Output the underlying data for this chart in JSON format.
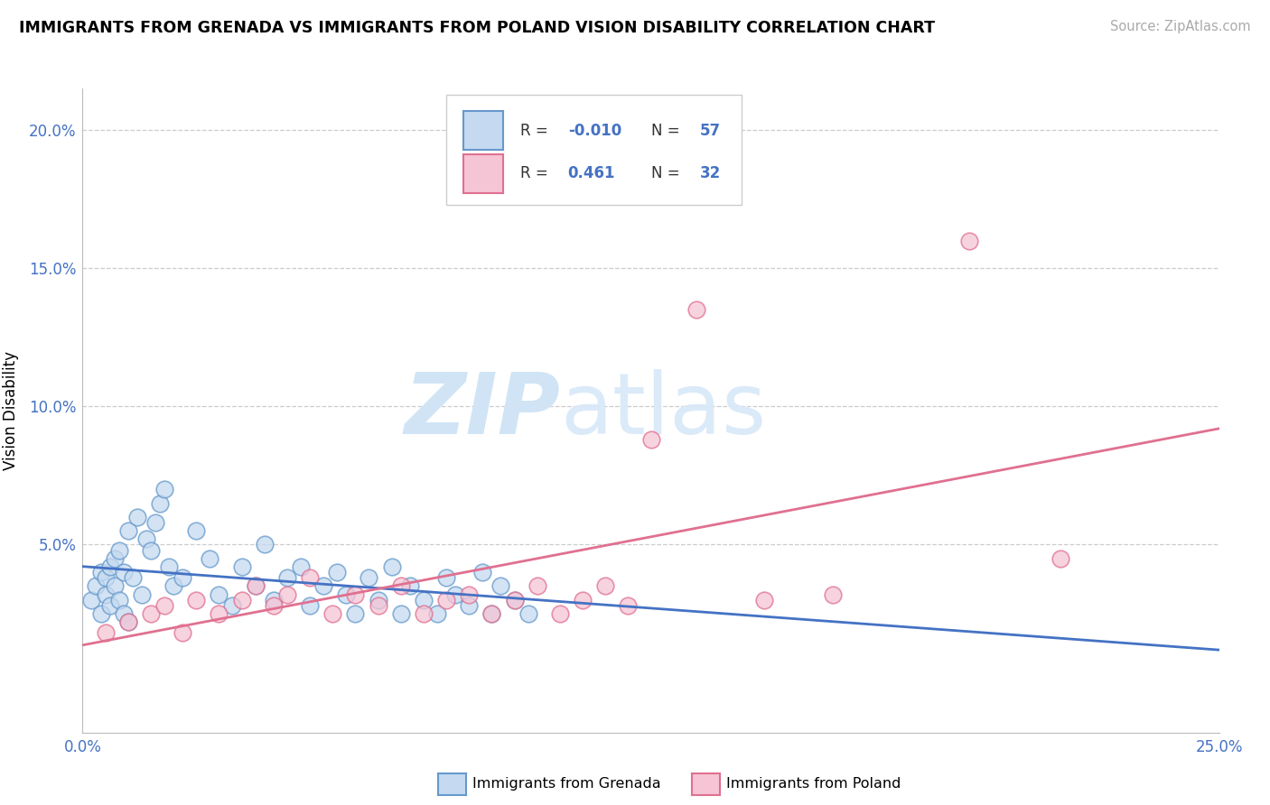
{
  "title": "IMMIGRANTS FROM GRENADA VS IMMIGRANTS FROM POLAND VISION DISABILITY CORRELATION CHART",
  "source": "Source: ZipAtlas.com",
  "ylabel": "Vision Disability",
  "xlim": [
    0.0,
    0.25
  ],
  "ylim": [
    -0.018,
    0.215
  ],
  "ytick_vals": [
    0.0,
    0.05,
    0.1,
    0.15,
    0.2
  ],
  "ytick_labels": [
    "",
    "5.0%",
    "10.0%",
    "15.0%",
    "20.0%"
  ],
  "legend_R_grenada": "-0.010",
  "legend_N_grenada": "57",
  "legend_R_poland": "0.461",
  "legend_N_poland": "32",
  "color_grenada_fill": "#c5daf0",
  "color_grenada_edge": "#6699cc",
  "color_grenada_line": "#4472c4",
  "color_poland_fill": "#f5c5d5",
  "color_poland_edge": "#e07090",
  "color_poland_line": "#e07090",
  "color_grid": "#cccccc",
  "color_r_val": "#4472c4",
  "color_n_val": "#4472c4",
  "color_ytick": "#4472c4",
  "color_xtick": "#4472c4",
  "grenada_x": [
    0.002,
    0.003,
    0.004,
    0.004,
    0.005,
    0.005,
    0.006,
    0.006,
    0.007,
    0.007,
    0.008,
    0.008,
    0.009,
    0.009,
    0.01,
    0.01,
    0.011,
    0.012,
    0.013,
    0.014,
    0.015,
    0.016,
    0.017,
    0.018,
    0.019,
    0.02,
    0.022,
    0.025,
    0.028,
    0.03,
    0.033,
    0.035,
    0.038,
    0.04,
    0.042,
    0.045,
    0.048,
    0.05,
    0.053,
    0.056,
    0.058,
    0.06,
    0.063,
    0.065,
    0.068,
    0.07,
    0.072,
    0.075,
    0.078,
    0.08,
    0.082,
    0.085,
    0.088,
    0.09,
    0.092,
    0.095,
    0.098
  ],
  "grenada_y": [
    0.03,
    0.035,
    0.025,
    0.04,
    0.032,
    0.038,
    0.028,
    0.042,
    0.035,
    0.045,
    0.03,
    0.048,
    0.025,
    0.04,
    0.022,
    0.055,
    0.038,
    0.06,
    0.032,
    0.052,
    0.048,
    0.058,
    0.065,
    0.07,
    0.042,
    0.035,
    0.038,
    0.055,
    0.045,
    0.032,
    0.028,
    0.042,
    0.035,
    0.05,
    0.03,
    0.038,
    0.042,
    0.028,
    0.035,
    0.04,
    0.032,
    0.025,
    0.038,
    0.03,
    0.042,
    0.025,
    0.035,
    0.03,
    0.025,
    0.038,
    0.032,
    0.028,
    0.04,
    0.025,
    0.035,
    0.03,
    0.025
  ],
  "poland_x": [
    0.005,
    0.01,
    0.015,
    0.018,
    0.022,
    0.025,
    0.03,
    0.035,
    0.038,
    0.042,
    0.045,
    0.05,
    0.055,
    0.06,
    0.065,
    0.07,
    0.075,
    0.08,
    0.085,
    0.09,
    0.095,
    0.1,
    0.105,
    0.11,
    0.115,
    0.12,
    0.125,
    0.135,
    0.15,
    0.165,
    0.215,
    0.195
  ],
  "poland_y": [
    0.018,
    0.022,
    0.025,
    0.028,
    0.018,
    0.03,
    0.025,
    0.03,
    0.035,
    0.028,
    0.032,
    0.038,
    0.025,
    0.032,
    0.028,
    0.035,
    0.025,
    0.03,
    0.032,
    0.025,
    0.03,
    0.035,
    0.025,
    0.03,
    0.035,
    0.028,
    0.088,
    0.135,
    0.03,
    0.032,
    0.045,
    0.16
  ]
}
